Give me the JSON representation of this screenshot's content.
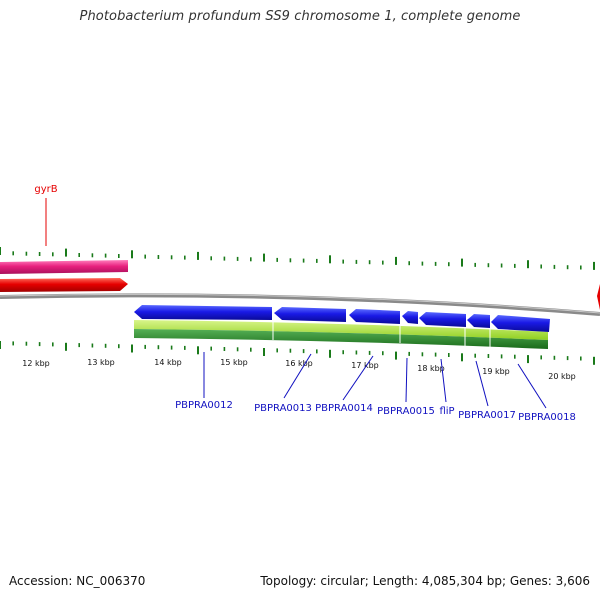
{
  "title": "Photobacterium profundum SS9 chromosome 1, complete genome",
  "footer": {
    "accession": "Accession: NC_006370",
    "topology": "Topology: circular; Length: 4,085,304 bp; Genes: 3,606"
  },
  "colors": {
    "backbone": "#8a8a8a",
    "tick": "#1a7a1a",
    "gene_blue": "#1a1ae6",
    "gene_blue_label": "#1010c0",
    "gene_red": "#e60000",
    "gene_pink": "#e8207e",
    "gc_light": "#a6e03a",
    "gc_dark": "#2e8b2e"
  },
  "axis_labels": [
    "12 kbp",
    "13 kbp",
    "14 kbp",
    "15 kbp",
    "16 kbp",
    "17 kbp",
    "18 kbp",
    "19 kbp",
    "20 kbp"
  ],
  "genes": [
    {
      "name": "gyrB",
      "color": "red"
    },
    {
      "name": "PBPRA0012",
      "color": "blue"
    },
    {
      "name": "PBPRA0013",
      "color": "blue"
    },
    {
      "name": "PBPRA0014",
      "color": "blue"
    },
    {
      "name": "PBPRA0015",
      "color": "blue"
    },
    {
      "name": "fliP",
      "color": "blue"
    },
    {
      "name": "PBPRA0017",
      "color": "blue"
    },
    {
      "name": "PBPRA0018",
      "color": "blue"
    }
  ]
}
